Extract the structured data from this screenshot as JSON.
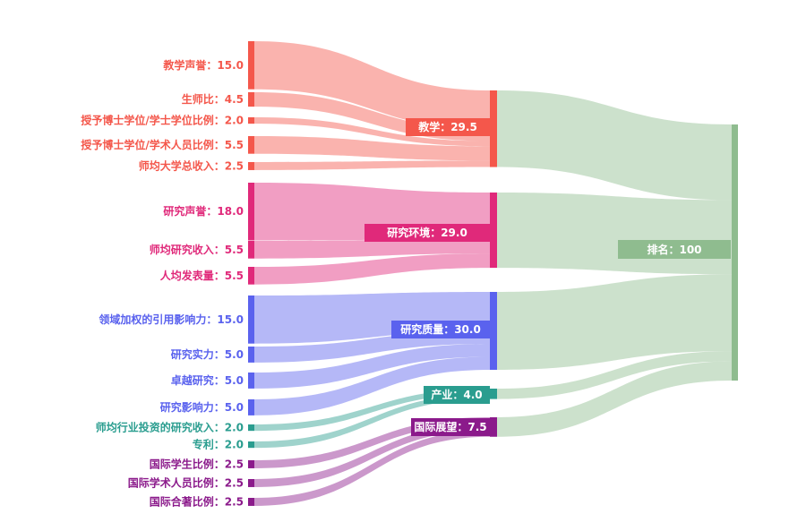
{
  "chart_data": {
    "type": "sankey",
    "root": {
      "label": "排名：100",
      "value": 100,
      "color": "#8fbc8f"
    },
    "groups": [
      {
        "id": "teaching",
        "label": "教学：29.5",
        "value": 29.5,
        "color": "#f4574b"
      },
      {
        "id": "research_env",
        "label": "研究环境：29.0",
        "value": 29.0,
        "color": "#e0297a"
      },
      {
        "id": "research_quality",
        "label": "研究质量：30.0",
        "value": 30.0,
        "color": "#5a62ee"
      },
      {
        "id": "industry",
        "label": "产业：4.0",
        "value": 4.0,
        "color": "#2a9d8f"
      },
      {
        "id": "international",
        "label": "国际展望：7.5",
        "value": 7.5,
        "color": "#8b1a8b"
      }
    ],
    "leaves": [
      {
        "label": "教学声誉：15.0",
        "value": 15.0,
        "group": "teaching"
      },
      {
        "label": "生师比：4.5",
        "value": 4.5,
        "group": "teaching"
      },
      {
        "label": "授予博士学位/学士学位比例：2.0",
        "value": 2.0,
        "group": "teaching"
      },
      {
        "label": "授予博士学位/学术人员比例：5.5",
        "value": 5.5,
        "group": "teaching"
      },
      {
        "label": "师均大学总收入：2.5",
        "value": 2.5,
        "group": "teaching"
      },
      {
        "label": "研究声誉：18.0",
        "value": 18.0,
        "group": "research_env"
      },
      {
        "label": "师均研究收入：5.5",
        "value": 5.5,
        "group": "research_env"
      },
      {
        "label": "人均发表量：5.5",
        "value": 5.5,
        "group": "research_env"
      },
      {
        "label": "领域加权的引用影响力：15.0",
        "value": 15.0,
        "group": "research_quality"
      },
      {
        "label": "研究实力：5.0",
        "value": 5.0,
        "group": "research_quality"
      },
      {
        "label": "卓越研究：5.0",
        "value": 5.0,
        "group": "research_quality"
      },
      {
        "label": "研究影响力：5.0",
        "value": 5.0,
        "group": "research_quality"
      },
      {
        "label": "师均行业投资的研究收入：2.0",
        "value": 2.0,
        "group": "industry"
      },
      {
        "label": "专利：2.0",
        "value": 2.0,
        "group": "industry"
      },
      {
        "label": "国际学生比例：2.5",
        "value": 2.5,
        "group": "international"
      },
      {
        "label": "国际学术人员比例：2.5",
        "value": 2.5,
        "group": "international"
      },
      {
        "label": "国际合著比例：2.5",
        "value": 2.5,
        "group": "international"
      }
    ]
  }
}
